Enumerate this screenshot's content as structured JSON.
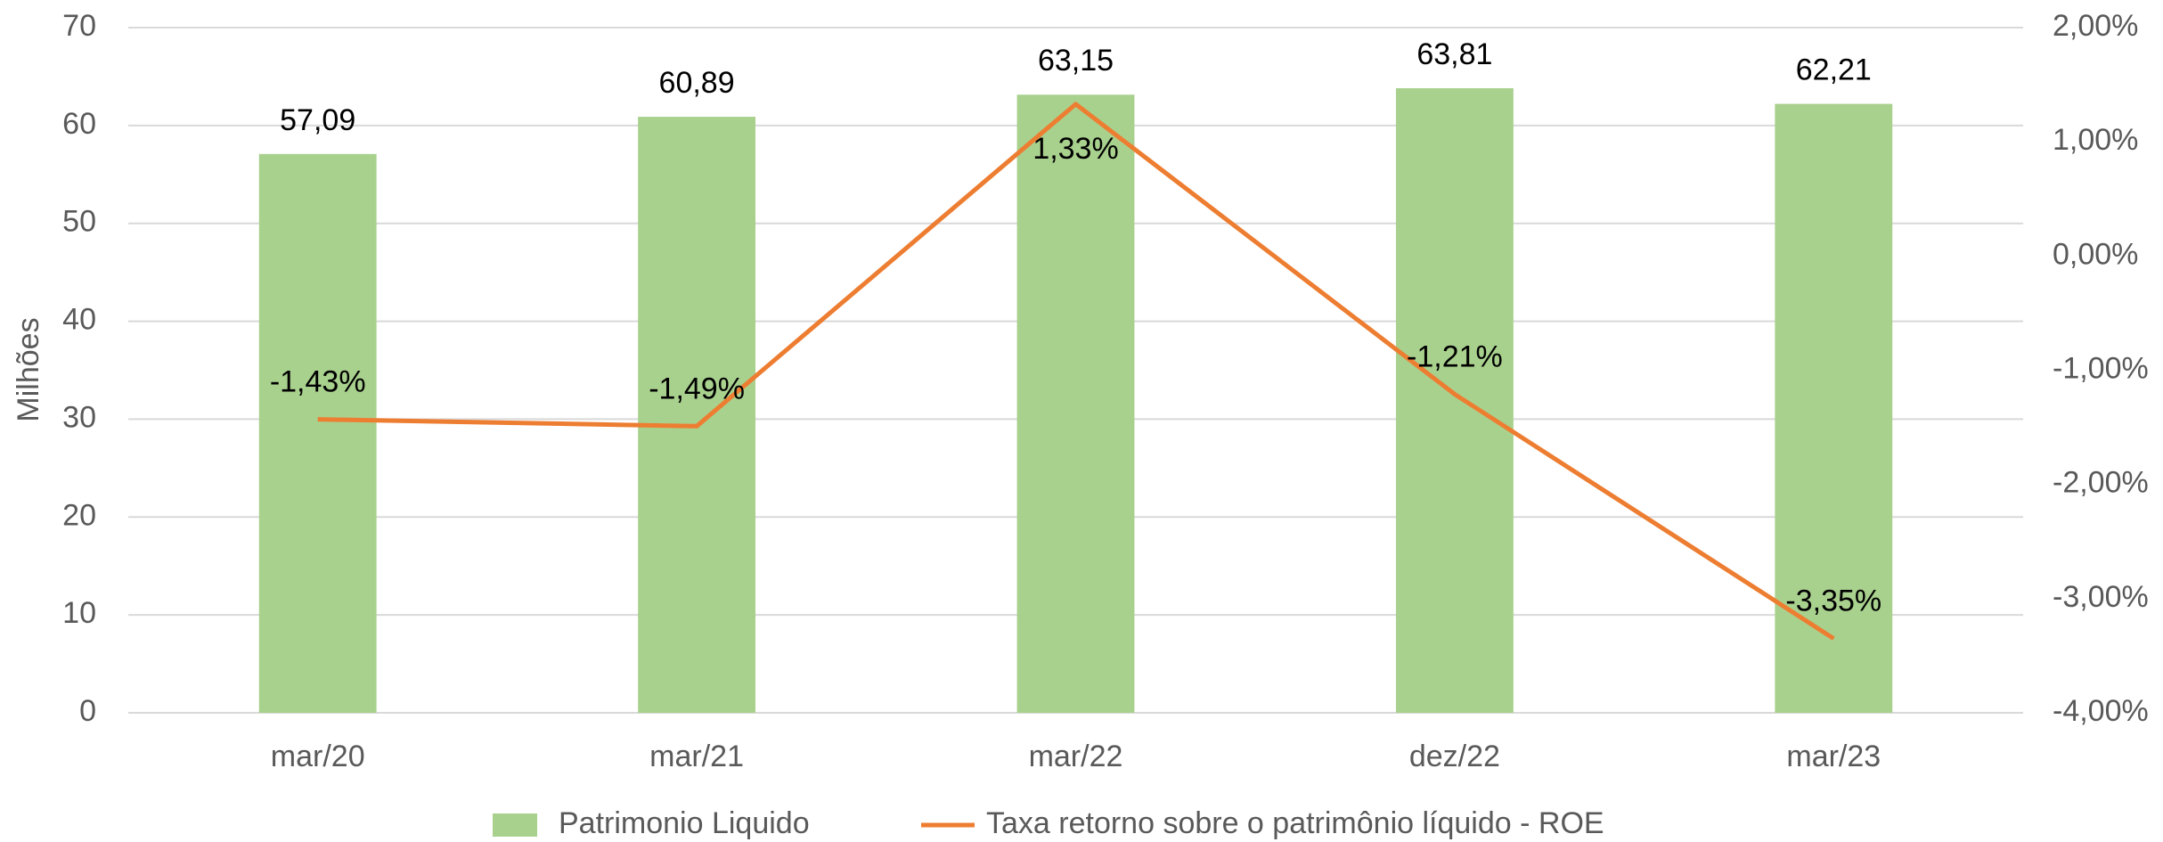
{
  "chart_data": {
    "type": "bar",
    "categories": [
      "mar/20",
      "mar/21",
      "mar/22",
      "dez/22",
      "mar/23"
    ],
    "series": [
      {
        "name": "Patrimonio Liquido",
        "color": "#a9d18e",
        "type": "bar",
        "values": [
          57.09,
          60.89,
          63.15,
          63.81,
          62.21
        ],
        "value_labels": [
          "57,09",
          "60,89",
          "63,15",
          "63,81",
          "62,21"
        ]
      },
      {
        "name": "Taxa retorno sobre o patrimônio líquido - ROE",
        "color": "#ed7d31",
        "type": "line",
        "axis": "y2",
        "values": [
          -1.43,
          -1.49,
          1.33,
          -1.21,
          -3.35
        ],
        "value_labels": [
          "-1,43%",
          "-1,49%",
          "1,33%",
          "-1,21%",
          "-3,35%"
        ]
      }
    ],
    "ylabel": "Milhões",
    "ylim": [
      0,
      70
    ],
    "yticks": [
      0,
      10,
      20,
      30,
      40,
      50,
      60,
      70
    ],
    "y2lim": [
      -4,
      2
    ],
    "y2ticks": [
      {
        "value": -4,
        "label": "-4,00%"
      },
      {
        "value": -3,
        "label": "-3,00%"
      },
      {
        "value": -2,
        "label": "-2,00%"
      },
      {
        "value": -1,
        "label": "-1,00%"
      },
      {
        "value": 0,
        "label": "0,00%"
      },
      {
        "value": 1,
        "label": "1,00%"
      },
      {
        "value": 2,
        "label": "2,00%"
      }
    ],
    "grid": true,
    "legend": "bottom"
  }
}
